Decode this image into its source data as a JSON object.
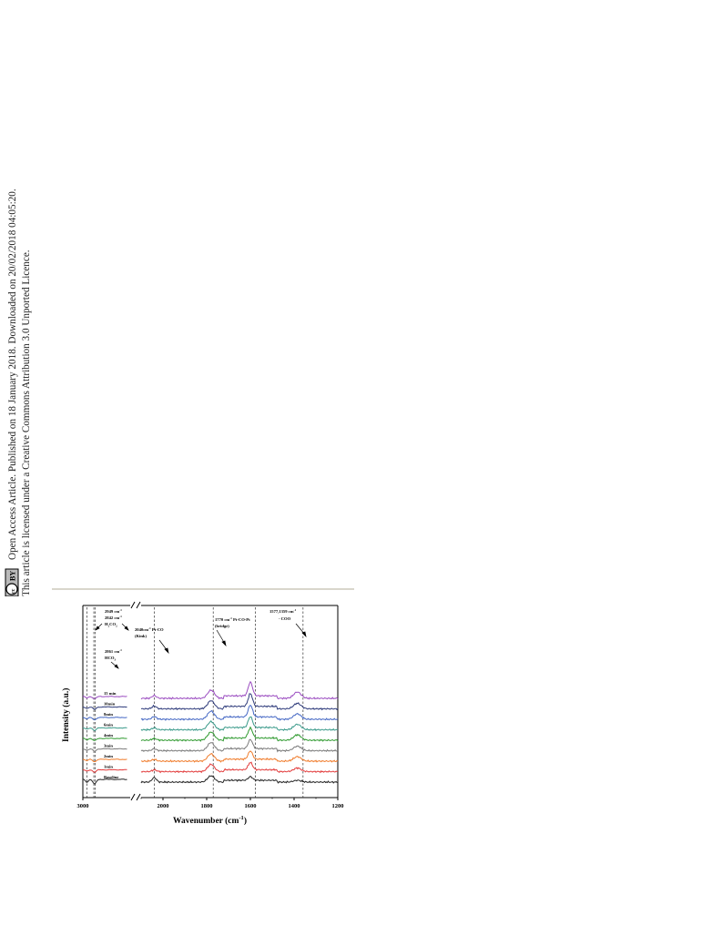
{
  "notice": {
    "line1": "Open Access Article. Published on 18 January 2018. Downloaded on 20/02/2018 04:05:20.",
    "line2": "This article is licensed under a Creative Commons Attribution 3.0 Unported Licence.",
    "badge_cc": "cc",
    "badge_by": "BY"
  },
  "colors": {
    "divider": "#d9d6cc",
    "series": [
      "#222222",
      "#e23b3b",
      "#f07b2a",
      "#7a7a7a",
      "#2f9a2f",
      "#3a9a8a",
      "#4467c4",
      "#2d3a7a",
      "#9a4bc0"
    ]
  },
  "chart_data": {
    "type": "line",
    "xlabel": "Wavenumber (cm",
    "xlabel_sup": "-1",
    "xlabel_end": ")",
    "ylabel": "Intensity (a.u.)",
    "x_reversed": true,
    "x_break": [
      2400,
      2100
    ],
    "xlim": [
      3000,
      1200
    ],
    "xticks": [
      "3000",
      "2000",
      "1800",
      "1600",
      "1400",
      "1200"
    ],
    "xtick_values": [
      3000,
      2000,
      1800,
      1600,
      1400,
      1200
    ],
    "reference_lines": [
      2949,
      2842,
      2861,
      2040,
      1770,
      1577,
      1359
    ],
    "peaks": [
      {
        "center": 2040,
        "width": 14,
        "heights": [
          5,
          2,
          2,
          2,
          2,
          2,
          3,
          3,
          3
        ]
      },
      {
        "center": 1780,
        "width": 22,
        "heights": [
          7,
          8,
          8,
          9,
          9,
          9,
          9,
          9,
          9
        ]
      },
      {
        "center": 1600,
        "width": 14,
        "heights": [
          4,
          8,
          9,
          10,
          11,
          12,
          13,
          14,
          15
        ]
      },
      {
        "center": 1385,
        "width": 24,
        "heights": [
          2,
          4,
          5,
          5,
          6,
          6,
          6,
          6,
          7
        ]
      }
    ],
    "series": [
      {
        "name": "Baseline",
        "offset": 0
      },
      {
        "name": "1min",
        "offset": 1
      },
      {
        "name": "2min",
        "offset": 2
      },
      {
        "name": "3min",
        "offset": 3
      },
      {
        "name": "4min",
        "offset": 4
      },
      {
        "name": "6min",
        "offset": 5
      },
      {
        "name": "8min",
        "offset": 6
      },
      {
        "name": "10min",
        "offset": 7
      },
      {
        "name": "15 min",
        "offset": 8
      }
    ],
    "annotations": [
      {
        "lines": [
          "2949 cm",
          "2842 cm",
          "H",
          "CO"
        ],
        "sups": [
          "-1",
          "-1",
          "2",
          "2"
        ],
        "name": "h2co2"
      },
      {
        "lines": [
          "2861 cm",
          "HCO"
        ],
        "sups": [
          "-1",
          "3"
        ],
        "name": "hco3"
      },
      {
        "lines": [
          "2040cm",
          "(Kink)"
        ],
        "sups": [
          "-1",
          ""
        ],
        "tail": " Pt-CO",
        "name": "kink"
      },
      {
        "lines": [
          "1770 cm",
          "(bridge)"
        ],
        "sups": [
          "-1",
          ""
        ],
        "tail": " Pt-CO-Pt",
        "name": "bridge"
      },
      {
        "lines": [
          "1577,1359 cm",
          "- COO"
        ],
        "sups": [
          "-1",
          ""
        ],
        "name": "coo"
      }
    ]
  }
}
